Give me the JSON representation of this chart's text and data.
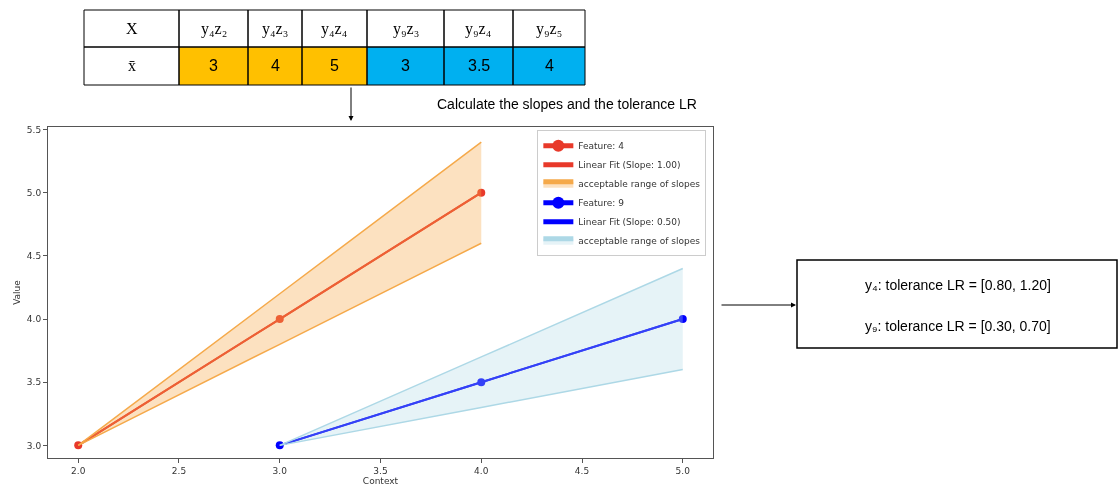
{
  "chart_data": {
    "type": "line",
    "xlabel": "Context",
    "ylabel": "Value",
    "xlim": [
      1.85,
      5.15
    ],
    "xticks": [
      {
        "value": 2,
        "label": "2.0"
      },
      {
        "value": 2.5,
        "label": "2.5"
      },
      {
        "value": 3,
        "label": "3.0"
      },
      {
        "value": 3.5,
        "label": "3.5"
      },
      {
        "value": 4,
        "label": "4.0"
      },
      {
        "value": 4.5,
        "label": "4.5"
      },
      {
        "value": 5,
        "label": "5.0"
      }
    ],
    "ylim": [
      2.9,
      5.52
    ],
    "yticks": [
      {
        "value": 3,
        "label": "3.0"
      },
      {
        "value": 3.5,
        "label": "3.5"
      },
      {
        "value": 4,
        "label": "4.0"
      },
      {
        "value": 4.5,
        "label": "4.5"
      },
      {
        "value": 5,
        "label": "5.0"
      },
      {
        "value": 5.5,
        "label": "5.5"
      }
    ],
    "legend": "top right",
    "series": [
      {
        "name": "Feature: 4",
        "marker": "circle",
        "color": "#e8392a",
        "x": [
          2,
          3,
          4
        ],
        "values": [
          3,
          4,
          5
        ]
      },
      {
        "name": "Linear Fit (Slope: 1.00)",
        "marker": "none",
        "color": "#e8392a",
        "x": [
          2,
          3,
          4
        ],
        "values": [
          3,
          4,
          5
        ]
      },
      {
        "marker": "none",
        "color": "#f5a94a",
        "x": [
          2,
          3,
          4
        ],
        "values": [
          3,
          3.8,
          4.6
        ]
      },
      {
        "name": "acceptable range of slopes",
        "type": "area",
        "color": "#f5a94a",
        "x": [
          2,
          3,
          4
        ],
        "values": [
          3,
          4.2,
          5.4
        ]
      },
      {
        "name": "Feature: 9",
        "marker": "circle",
        "color": "#0000ff",
        "x": [
          3,
          4,
          5
        ],
        "values": [
          3,
          3.5,
          4
        ]
      },
      {
        "name": "Linear Fit (Slope: 0.50)",
        "marker": "none",
        "color": "#0000ff",
        "x": [
          3,
          4,
          5
        ],
        "values": [
          3,
          3.5,
          4
        ]
      },
      {
        "marker": "none",
        "color": "#add8e6",
        "x": [
          3,
          4,
          5
        ],
        "values": [
          3,
          3.3,
          3.6
        ]
      },
      {
        "name": "acceptable range of slopes",
        "type": "area",
        "color": "#add8e6",
        "x": [
          3,
          4,
          5
        ],
        "values": [
          3,
          3.7,
          4.4
        ]
      }
    ],
    "annotations": [
      "X",
      "y₄z₂",
      "y₄z₃",
      "y₄z₄",
      "y₉z₃",
      "y₉z₄",
      "y₉z₅",
      "x̄",
      "3",
      "4",
      "5",
      "3",
      "3.5",
      "4",
      "Calculate the slopes and the tolerance LR",
      "y₄: tolerance LR = [0.80, 1.20]",
      "y₉: tolerance LR = [0.30, 0.70]"
    ]
  }
}
